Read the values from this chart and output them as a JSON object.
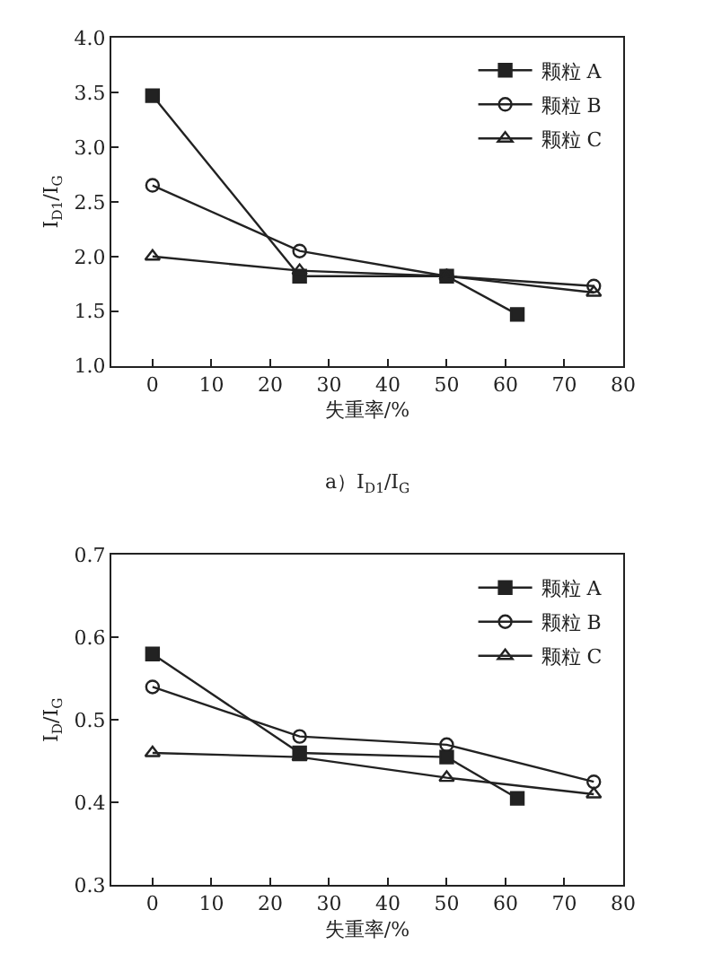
{
  "chart_data": [
    {
      "type": "line",
      "xlabel": "失重率/%",
      "ylabel": "I$_{D1}$/I$_{G}$",
      "annotations": [
        "a）I$_{D1}$/I$_{G}$"
      ],
      "xlim": [
        -7,
        80
      ],
      "xticks": [
        0,
        10,
        20,
        30,
        40,
        50,
        60,
        70,
        80
      ],
      "ylim": [
        1.0,
        4.0
      ],
      "yticks": [
        {
          "value": 1.0,
          "label": "1.0"
        },
        {
          "value": 1.5,
          "label": "1.5"
        },
        {
          "value": 2.0,
          "label": "2.0"
        },
        {
          "value": 2.5,
          "label": "2.5"
        },
        {
          "value": 3.0,
          "label": "3.0"
        },
        {
          "value": 3.5,
          "label": "3.5"
        },
        {
          "value": 4.0,
          "label": "4.0"
        }
      ],
      "legend": "top right",
      "series": [
        {
          "name": "颗粒 A",
          "color": "#222222",
          "marker": "square",
          "x": [
            0,
            25,
            50,
            62
          ],
          "values": [
            3.47,
            1.82,
            1.82,
            1.47
          ]
        },
        {
          "name": "颗粒 B",
          "color": "#222222",
          "marker": "circle",
          "x": [
            0,
            25,
            50,
            75
          ],
          "values": [
            2.65,
            2.05,
            1.82,
            1.73
          ]
        },
        {
          "name": "颗粒 C",
          "color": "#222222",
          "marker": "triangle",
          "x": [
            0,
            25,
            50,
            75
          ],
          "values": [
            2.0,
            1.87,
            1.82,
            1.67
          ]
        }
      ]
    },
    {
      "type": "line",
      "xlabel": "失重率/%",
      "ylabel": "I$_{D}$/I$_{G}$",
      "xlim": [
        -7,
        80
      ],
      "xticks": [
        0,
        10,
        20,
        30,
        40,
        50,
        60,
        70,
        80
      ],
      "ylim": [
        0.3,
        0.7
      ],
      "yticks": [
        0.3,
        0.4,
        0.5,
        0.6,
        0.7
      ],
      "legend": "top right",
      "series": [
        {
          "name": "颗粒 A",
          "color": "#222222",
          "marker": "square",
          "x": [
            0,
            25,
            50,
            62
          ],
          "values": [
            0.58,
            0.46,
            0.455,
            0.405
          ]
        },
        {
          "name": "颗粒 B",
          "color": "#222222",
          "marker": "circle",
          "x": [
            0,
            25,
            50,
            75
          ],
          "values": [
            0.54,
            0.48,
            0.47,
            0.425
          ]
        },
        {
          "name": "颗粒 C",
          "color": "#222222",
          "marker": "triangle",
          "x": [
            0,
            25,
            50,
            75
          ],
          "values": [
            0.46,
            0.455,
            0.43,
            0.41
          ]
        }
      ]
    }
  ]
}
